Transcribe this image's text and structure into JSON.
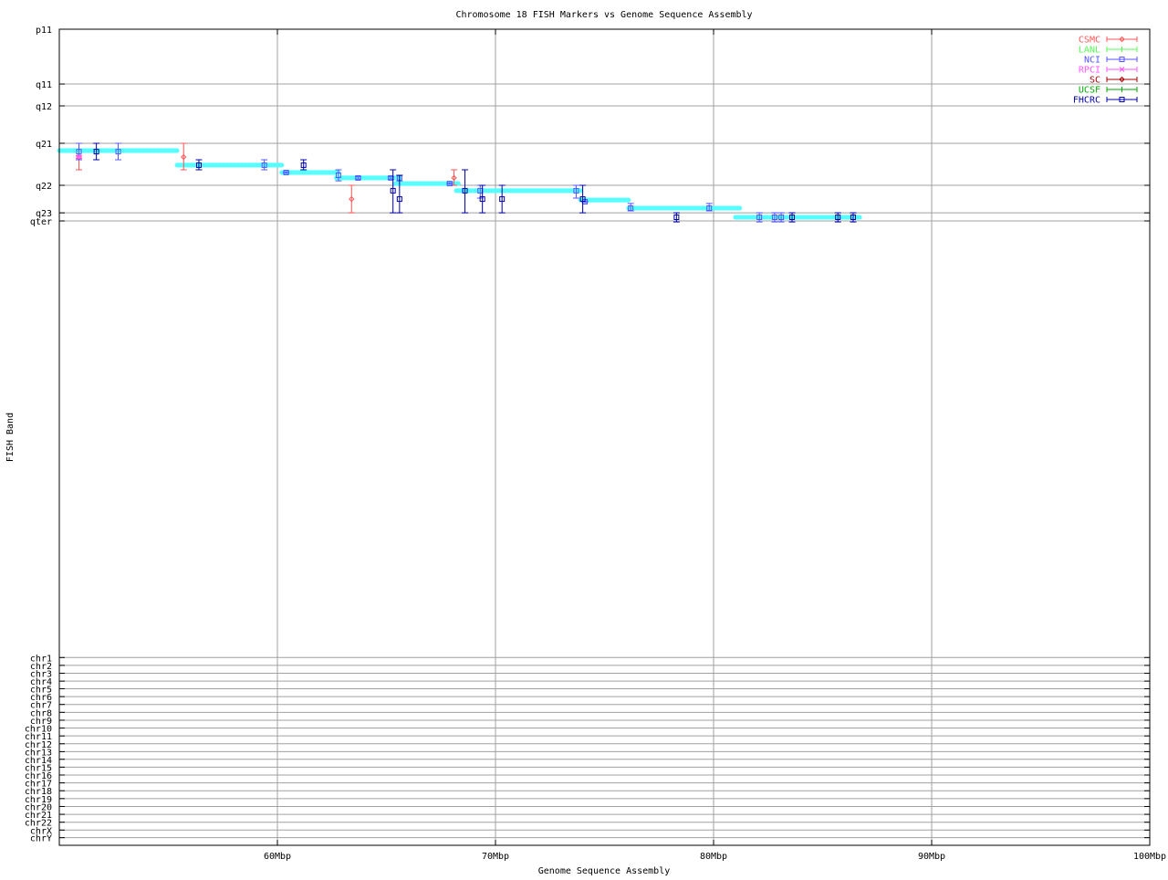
{
  "chart_data": {
    "type": "scatter",
    "title": "Chromosome 18 FISH Markers vs Genome Sequence Assembly",
    "xlabel": "Genome Sequence Assembly",
    "ylabel": "FISH Band",
    "xlim": [
      50,
      100
    ],
    "ylim": [
      0,
      332
    ],
    "grid": true,
    "legend_position": "top-right",
    "xticks": [
      {
        "v": 60,
        "label": "60Mbp"
      },
      {
        "v": 70,
        "label": "70Mbp"
      },
      {
        "v": 80,
        "label": "80Mbp"
      },
      {
        "v": 90,
        "label": "90Mbp"
      },
      {
        "v": 100,
        "label": "100Mbp"
      }
    ],
    "yticks": [
      {
        "v": 0,
        "label": "p11"
      },
      {
        "v": 22.3,
        "label": "q11"
      },
      {
        "v": 31.2,
        "label": "q12"
      },
      {
        "v": 46.4,
        "label": "q21"
      },
      {
        "v": 63.5,
        "label": "q22"
      },
      {
        "v": 74.7,
        "label": "q23"
      },
      {
        "v": 78.0,
        "label": "qter"
      },
      {
        "v": 255.6,
        "label": "chr1"
      },
      {
        "v": 258.8,
        "label": "chr2"
      },
      {
        "v": 262.0,
        "label": "chr3"
      },
      {
        "v": 265.2,
        "label": "chr4"
      },
      {
        "v": 268.3,
        "label": "chr5"
      },
      {
        "v": 271.5,
        "label": "chr6"
      },
      {
        "v": 274.7,
        "label": "chr7"
      },
      {
        "v": 277.9,
        "label": "chr8"
      },
      {
        "v": 281.1,
        "label": "chr9"
      },
      {
        "v": 284.3,
        "label": "chr10"
      },
      {
        "v": 287.5,
        "label": "chr11"
      },
      {
        "v": 290.7,
        "label": "chr12"
      },
      {
        "v": 293.9,
        "label": "chr13"
      },
      {
        "v": 297.0,
        "label": "chr14"
      },
      {
        "v": 300.2,
        "label": "chr15"
      },
      {
        "v": 303.4,
        "label": "chr16"
      },
      {
        "v": 306.6,
        "label": "chr17"
      },
      {
        "v": 309.8,
        "label": "chr18"
      },
      {
        "v": 313.0,
        "label": "chr19"
      },
      {
        "v": 316.2,
        "label": "chr20"
      },
      {
        "v": 319.4,
        "label": "chr21"
      },
      {
        "v": 322.6,
        "label": "chr22"
      },
      {
        "v": 325.8,
        "label": "chrX"
      },
      {
        "v": 328.9,
        "label": "chrY"
      }
    ],
    "assembly_segments": {
      "color": "#55ffff",
      "segments": [
        [
          50.0,
          55.4,
          49.4
        ],
        [
          55.4,
          60.2,
          55.3
        ],
        [
          60.2,
          62.8,
          58.3
        ],
        [
          62.7,
          65.6,
          60.5
        ],
        [
          65.4,
          68.3,
          62.8
        ],
        [
          68.2,
          73.9,
          65.7
        ],
        [
          73.9,
          76.1,
          69.5
        ],
        [
          76.1,
          81.2,
          72.8
        ],
        [
          81.0,
          86.7,
          76.5
        ]
      ]
    },
    "series": [
      {
        "name": "CSMC",
        "color": "#ff5555",
        "marker": "diamond",
        "points": [
          [
            50.9,
            52.0,
            46.4,
            57.2
          ],
          [
            55.7,
            52.0,
            46.4,
            57.2
          ],
          [
            63.4,
            69.1,
            63.5,
            74.7
          ],
          [
            68.1,
            60.5,
            57.2,
            63.5
          ]
        ]
      },
      {
        "name": "LANL",
        "color": "#55ff55",
        "marker": "plus",
        "points": []
      },
      {
        "name": "NCI",
        "color": "#5555ff",
        "marker": "square",
        "points": [
          [
            50.9,
            49.8,
            46.4,
            53.1
          ],
          [
            52.7,
            49.8,
            46.4,
            53.1
          ],
          [
            59.4,
            55.3,
            53.1,
            57.2
          ],
          [
            60.4,
            58.3,
            58.0,
            58.6
          ],
          [
            62.8,
            59.4,
            57.2,
            61.7
          ],
          [
            63.7,
            60.5,
            60.0,
            61.0
          ],
          [
            65.2,
            60.5,
            60.0,
            61.0
          ],
          [
            65.6,
            60.5,
            59.4,
            61.7
          ],
          [
            67.9,
            62.8,
            62.5,
            63.1
          ],
          [
            69.3,
            65.7,
            63.5,
            68.7
          ],
          [
            73.7,
            65.7,
            63.5,
            68.7
          ],
          [
            74.1,
            70.2,
            69.9,
            70.5
          ],
          [
            76.2,
            72.8,
            70.9,
            73.9
          ],
          [
            79.8,
            72.8,
            70.9,
            73.9
          ],
          [
            82.1,
            76.5,
            74.7,
            78.4
          ],
          [
            82.8,
            76.5,
            74.7,
            78.4
          ],
          [
            83.1,
            76.5,
            74.7,
            78.4
          ]
        ]
      },
      {
        "name": "RPCI",
        "color": "#ff55ff",
        "marker": "cross",
        "points": [
          [
            50.9,
            52.0,
            51.5,
            52.5
          ]
        ]
      },
      {
        "name": "SC",
        "color": "#aa0000",
        "marker": "diamond",
        "points": []
      },
      {
        "name": "UCSF",
        "color": "#00aa00",
        "marker": "plus",
        "points": []
      },
      {
        "name": "FHCRC",
        "color": "#0000aa",
        "marker": "square",
        "points": [
          [
            51.7,
            49.8,
            46.4,
            53.1
          ],
          [
            56.4,
            55.3,
            53.1,
            57.2
          ],
          [
            61.2,
            55.3,
            53.1,
            57.2
          ],
          [
            65.3,
            65.7,
            57.2,
            74.7
          ],
          [
            65.6,
            69.1,
            59.4,
            74.7
          ],
          [
            68.6,
            65.7,
            57.2,
            74.7
          ],
          [
            69.4,
            69.1,
            63.5,
            74.7
          ],
          [
            70.3,
            69.1,
            63.5,
            74.7
          ],
          [
            74.0,
            69.1,
            63.5,
            74.7
          ],
          [
            78.3,
            76.5,
            74.7,
            78.4
          ],
          [
            83.6,
            76.5,
            74.7,
            78.4
          ],
          [
            85.7,
            76.5,
            74.7,
            78.4
          ],
          [
            86.4,
            76.5,
            74.7,
            78.4
          ]
        ]
      }
    ]
  }
}
